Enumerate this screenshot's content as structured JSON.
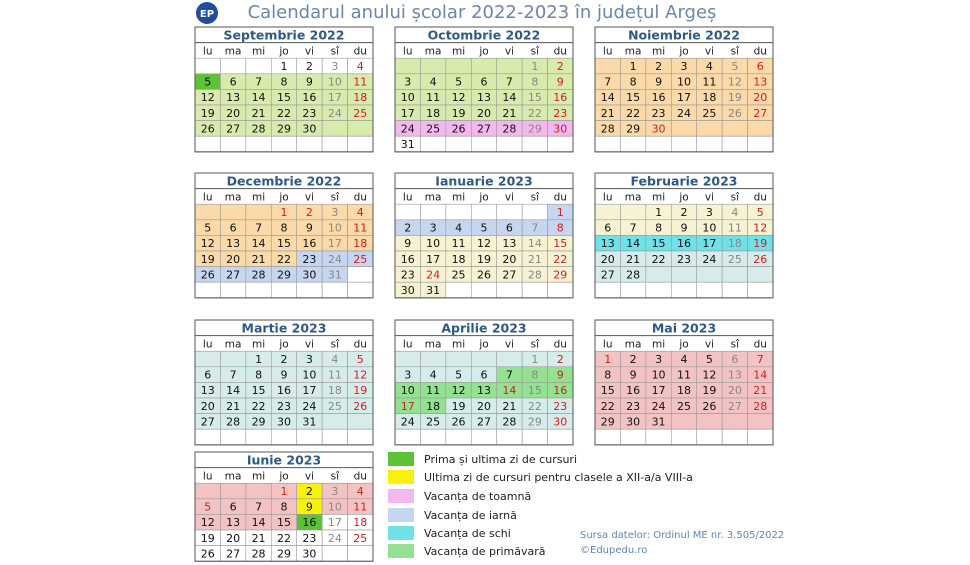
{
  "header": {
    "logo": "EP",
    "title": "Calendarul anului școlar 2022-2023 în județul Argeș"
  },
  "weekdays": [
    "lu",
    "ma",
    "mi",
    "jo",
    "vi",
    "sî",
    "du"
  ],
  "palette": {
    "w": "#ffffff",
    "g": "#d9eaad",
    "G": "#5cc236",
    "o": "#fbd9a8",
    "b": "#c6d6f1",
    "p": "#f3b9ef",
    "c": "#6fe1e9",
    "l": "#d6ecea",
    "y": "#f7f10b",
    "n": "#f7f3d2",
    "r": "#f3c3c3",
    "v": "#93e291"
  },
  "months": [
    {
      "name": "Septembrie 2022",
      "weeks": [
        [
          null,
          null,
          null,
          1,
          2,
          3,
          4
        ],
        [
          5,
          6,
          7,
          8,
          9,
          10,
          11
        ],
        [
          12,
          13,
          14,
          15,
          16,
          17,
          18
        ],
        [
          19,
          20,
          21,
          22,
          23,
          24,
          25
        ],
        [
          26,
          27,
          28,
          29,
          30,
          null,
          null
        ],
        [
          null,
          null,
          null,
          null,
          null,
          null,
          null
        ]
      ],
      "shade": [
        "wwwwwww",
        "Ggggggg",
        "ggggggg",
        "ggggggg",
        "ggggggg",
        "wwwwwww"
      ],
      "holidays": []
    },
    {
      "name": "Octombrie 2022",
      "weeks": [
        [
          null,
          null,
          null,
          null,
          null,
          1,
          2
        ],
        [
          3,
          4,
          5,
          6,
          7,
          8,
          9
        ],
        [
          10,
          11,
          12,
          13,
          14,
          15,
          16
        ],
        [
          17,
          18,
          19,
          20,
          21,
          22,
          23
        ],
        [
          24,
          25,
          26,
          27,
          28,
          29,
          30
        ],
        [
          31,
          null,
          null,
          null,
          null,
          null,
          null
        ]
      ],
      "shade": [
        "ggggggg",
        "ggggggg",
        "ggggggg",
        "ggggggg",
        "ppppppp",
        "wwwwwww"
      ],
      "holidays": []
    },
    {
      "name": "Noiembrie 2022",
      "weeks": [
        [
          null,
          1,
          2,
          3,
          4,
          5,
          6
        ],
        [
          7,
          8,
          9,
          10,
          11,
          12,
          13
        ],
        [
          14,
          15,
          16,
          17,
          18,
          19,
          20
        ],
        [
          21,
          22,
          23,
          24,
          25,
          26,
          27
        ],
        [
          28,
          29,
          30,
          null,
          null,
          null,
          null
        ],
        [
          null,
          null,
          null,
          null,
          null,
          null,
          null
        ]
      ],
      "shade": [
        "ooooooo",
        "ooooooo",
        "ooooooo",
        "ooooooo",
        "ooooooo",
        "wwwwwww"
      ],
      "holidays": [
        30
      ]
    },
    {
      "name": "Decembrie 2022",
      "weeks": [
        [
          null,
          null,
          null,
          1,
          2,
          3,
          4
        ],
        [
          5,
          6,
          7,
          8,
          9,
          10,
          11
        ],
        [
          12,
          13,
          14,
          15,
          16,
          17,
          18
        ],
        [
          19,
          20,
          21,
          22,
          23,
          24,
          25
        ],
        [
          26,
          27,
          28,
          29,
          30,
          31,
          null
        ],
        [
          null,
          null,
          null,
          null,
          null,
          null,
          null
        ]
      ],
      "shade": [
        "ooooooo",
        "ooooooo",
        "ooooooo",
        "oooobbb",
        "bbbbbbw",
        "wwwwwww"
      ],
      "holidays": [
        1,
        2
      ]
    },
    {
      "name": "Ianuarie 2023",
      "weeks": [
        [
          null,
          null,
          null,
          null,
          null,
          null,
          1
        ],
        [
          2,
          3,
          4,
          5,
          6,
          7,
          8
        ],
        [
          9,
          10,
          11,
          12,
          13,
          14,
          15
        ],
        [
          16,
          17,
          18,
          19,
          20,
          21,
          22
        ],
        [
          23,
          24,
          25,
          26,
          27,
          28,
          29
        ],
        [
          30,
          31,
          null,
          null,
          null,
          null,
          null
        ]
      ],
      "shade": [
        "wwwwwwb",
        "bbbbbbb",
        "nnnnnnn",
        "nnnnnnn",
        "nnnnnnn",
        "nnwwwww"
      ],
      "holidays": [
        24
      ]
    },
    {
      "name": "Februarie 2023",
      "weeks": [
        [
          null,
          null,
          1,
          2,
          3,
          4,
          5
        ],
        [
          6,
          7,
          8,
          9,
          10,
          11,
          12
        ],
        [
          13,
          14,
          15,
          16,
          17,
          18,
          19
        ],
        [
          20,
          21,
          22,
          23,
          24,
          25,
          26
        ],
        [
          27,
          28,
          null,
          null,
          null,
          null,
          null
        ],
        [
          null,
          null,
          null,
          null,
          null,
          null,
          null
        ]
      ],
      "shade": [
        "nnnnnnn",
        "nnnnnnn",
        "ccccccc",
        "lllllll",
        "lllllll",
        "wwwwwww"
      ],
      "holidays": []
    },
    {
      "name": "Martie 2023",
      "weeks": [
        [
          null,
          null,
          1,
          2,
          3,
          4,
          5
        ],
        [
          6,
          7,
          8,
          9,
          10,
          11,
          12
        ],
        [
          13,
          14,
          15,
          16,
          17,
          18,
          19
        ],
        [
          20,
          21,
          22,
          23,
          24,
          25,
          26
        ],
        [
          27,
          28,
          29,
          30,
          31,
          null,
          null
        ],
        [
          null,
          null,
          null,
          null,
          null,
          null,
          null
        ]
      ],
      "shade": [
        "lllllll",
        "lllllll",
        "lllllll",
        "lllllll",
        "lllllll",
        "wwwwwww"
      ],
      "holidays": []
    },
    {
      "name": "Aprilie 2023",
      "weeks": [
        [
          null,
          null,
          null,
          null,
          null,
          1,
          2
        ],
        [
          3,
          4,
          5,
          6,
          7,
          8,
          9
        ],
        [
          10,
          11,
          12,
          13,
          14,
          15,
          16
        ],
        [
          17,
          18,
          19,
          20,
          21,
          22,
          23
        ],
        [
          24,
          25,
          26,
          27,
          28,
          29,
          30
        ],
        [
          null,
          null,
          null,
          null,
          null,
          null,
          null
        ]
      ],
      "shade": [
        "lllllll",
        "llllvvv",
        "vvvvvvv",
        "vvlllll",
        "lllllll",
        "wwwwwww"
      ],
      "holidays": [
        14,
        17
      ]
    },
    {
      "name": "Mai 2023",
      "weeks": [
        [
          1,
          2,
          3,
          4,
          5,
          6,
          7
        ],
        [
          8,
          9,
          10,
          11,
          12,
          13,
          14
        ],
        [
          15,
          16,
          17,
          18,
          19,
          20,
          21
        ],
        [
          22,
          23,
          24,
          25,
          26,
          27,
          28
        ],
        [
          29,
          30,
          31,
          null,
          null,
          null,
          null
        ],
        [
          null,
          null,
          null,
          null,
          null,
          null,
          null
        ]
      ],
      "shade": [
        "rrrrrrr",
        "rrrrrrr",
        "rrrrrrr",
        "rrrrrrr",
        "rrrrrrr",
        "wwwwwww"
      ],
      "holidays": [
        1
      ]
    },
    {
      "name": "Iunie 2023",
      "weeks": [
        [
          null,
          null,
          null,
          1,
          2,
          3,
          4
        ],
        [
          5,
          6,
          7,
          8,
          9,
          10,
          11
        ],
        [
          12,
          13,
          14,
          15,
          16,
          17,
          18
        ],
        [
          19,
          20,
          21,
          22,
          23,
          24,
          25
        ],
        [
          26,
          27,
          28,
          29,
          30,
          null,
          null
        ]
      ],
      "shade": [
        "rrrryrr",
        "rrrryrr",
        "rrrrGww",
        "wwwwwww",
        "wwwwwww"
      ],
      "holidays": [
        1,
        5
      ]
    }
  ],
  "legend": [
    {
      "label": "Prima și ultima zi de cursuri",
      "color": "#5cc236"
    },
    {
      "label": "Ultima zi de cursuri pentru clasele a XII-a/a VIII-a",
      "color": "#f7f10b"
    },
    {
      "label": "Vacanța de toamnă",
      "color": "#f3b9ef"
    },
    {
      "label": "Vacanța de iarnă",
      "color": "#c6d6f1"
    },
    {
      "label": "Vacanța de schi",
      "color": "#6fe1e9"
    },
    {
      "label": "Vacanța de primăvară",
      "color": "#93e291"
    }
  ],
  "source": {
    "text": "Sursa datelor: Ordinul ME nr. 3.505/2022",
    "credit": "©Edupedu.ro"
  }
}
